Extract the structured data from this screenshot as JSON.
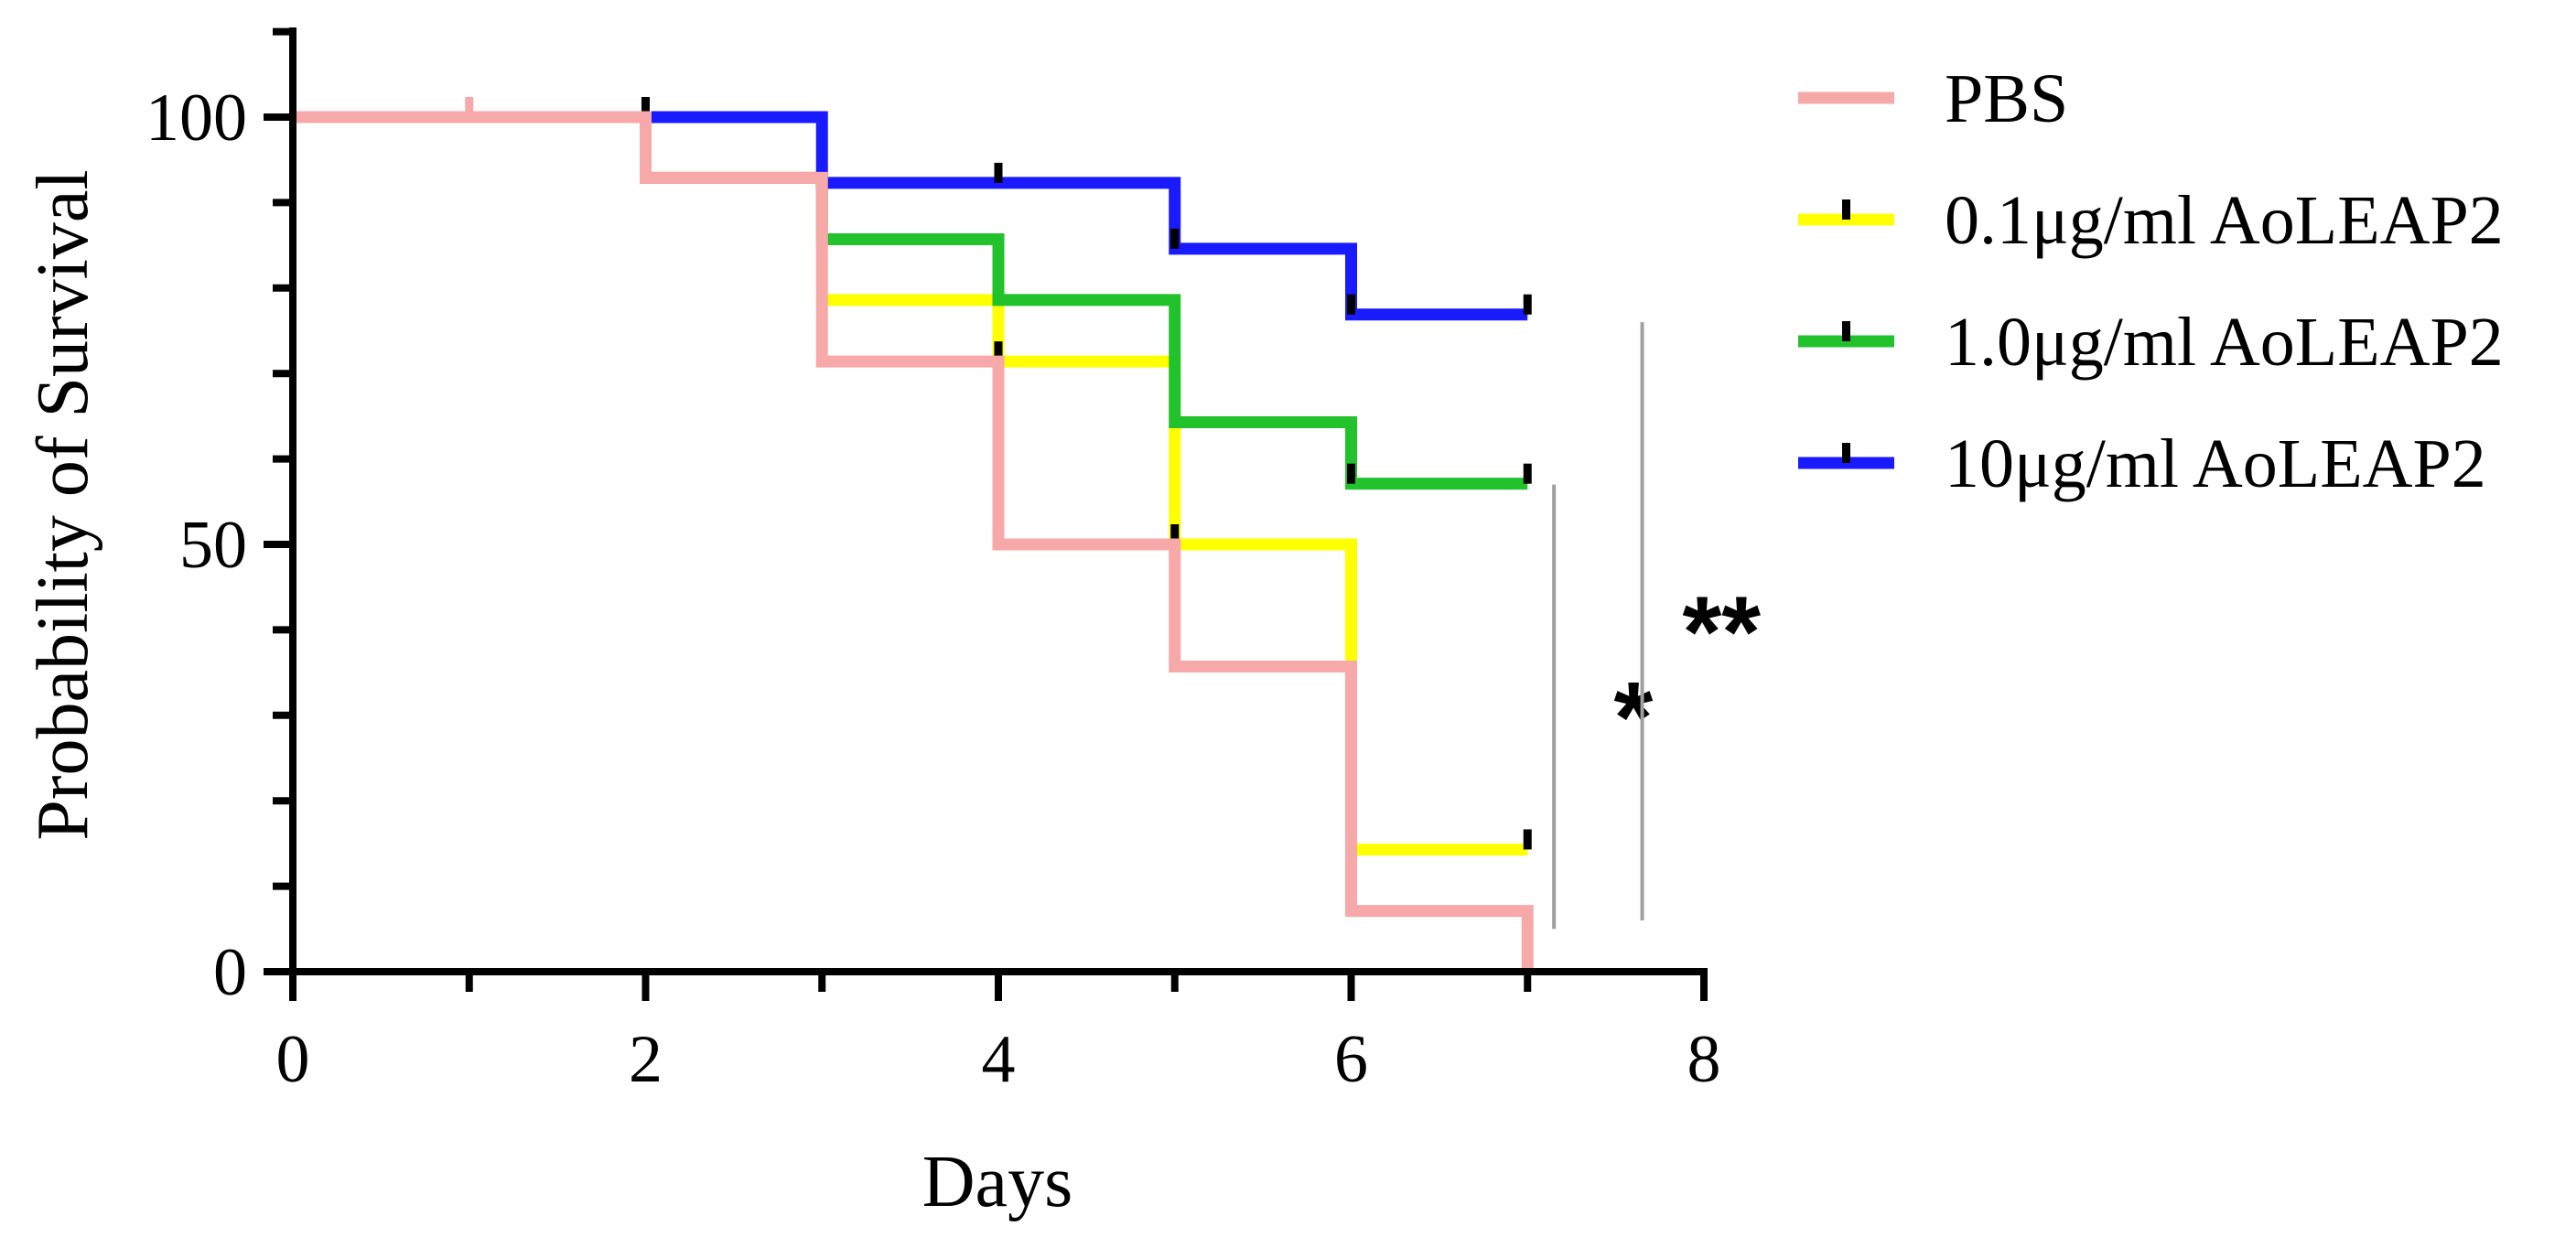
{
  "chart_data": {
    "type": "line",
    "subtype": "kaplan-meier step",
    "title": "",
    "xlabel": "Days",
    "ylabel": "Probability of Survival",
    "xlim": [
      0,
      8
    ],
    "ylim": [
      0,
      100
    ],
    "x_ticks": [
      0,
      2,
      4,
      6,
      8
    ],
    "y_ticks": [
      0,
      50,
      100
    ],
    "grid": false,
    "legend_position": "right",
    "series": [
      {
        "name": "PBS",
        "color": "#f7a8a8",
        "legend_marker": "line",
        "steps": [
          [
            0,
            100
          ],
          [
            2,
            92.9
          ],
          [
            3,
            71.4
          ],
          [
            4,
            50
          ],
          [
            5,
            35.7
          ],
          [
            6,
            7.1
          ],
          [
            7,
            0
          ]
        ],
        "end_x": 7,
        "censor_marks": [
          [
            1,
            100
          ]
        ]
      },
      {
        "name": "0.1μg/ml AoLEAP2",
        "color": "#ffff00",
        "legend_marker": "line-with-tick",
        "steps": [
          [
            0,
            100
          ],
          [
            2,
            92.9
          ],
          [
            3,
            78.6
          ],
          [
            4,
            71.4
          ],
          [
            5,
            50
          ],
          [
            6,
            14.3
          ]
        ],
        "end_x": 7,
        "censor_marks": [
          [
            4,
            71.4
          ],
          [
            5,
            50
          ],
          [
            7,
            14.3
          ]
        ]
      },
      {
        "name": "1.0μg/ml AoLEAP2",
        "color": "#22c22c",
        "legend_marker": "line-with-tick",
        "steps": [
          [
            0,
            100
          ],
          [
            2,
            92.9
          ],
          [
            3,
            85.7
          ],
          [
            4,
            78.6
          ],
          [
            5,
            64.3
          ],
          [
            6,
            57.1
          ]
        ],
        "end_x": 7,
        "censor_marks": [
          [
            6,
            57.1
          ],
          [
            7,
            57.1
          ]
        ]
      },
      {
        "name": "10μg/ml AoLEAP2",
        "color": "#1a1aff",
        "legend_marker": "line-with-tick",
        "steps": [
          [
            0,
            100
          ],
          [
            3,
            92.3
          ],
          [
            5,
            84.6
          ],
          [
            6,
            76.9
          ]
        ],
        "end_x": 7,
        "censor_marks": [
          [
            2,
            100
          ],
          [
            4,
            92.3
          ],
          [
            5,
            84.6
          ],
          [
            6,
            76.9
          ],
          [
            7,
            76.9
          ]
        ]
      }
    ],
    "annotations": [
      {
        "text": "*",
        "type": "significance",
        "x": 7.6,
        "y": 30,
        "bracket_x": 7.15,
        "bracket_y": [
          5,
          57
        ]
      },
      {
        "text": "**",
        "type": "significance",
        "x": 8.1,
        "y": 40,
        "bracket_x": 7.65,
        "bracket_y": [
          6,
          76
        ]
      }
    ]
  }
}
